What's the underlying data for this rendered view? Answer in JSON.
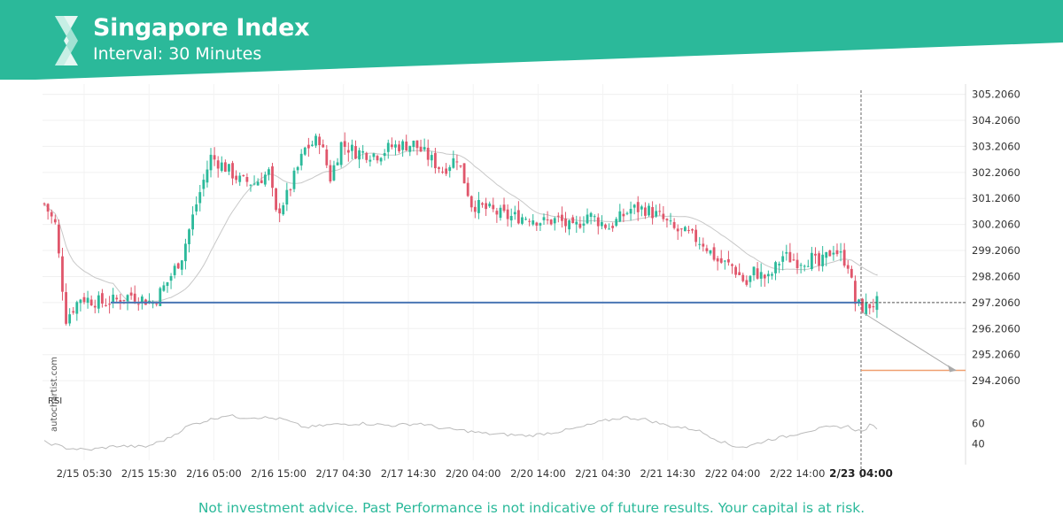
{
  "header": {
    "title": "Singapore Index",
    "interval": "Interval: 30 Minutes"
  },
  "colors": {
    "brand": "#2bb99a",
    "bull": "#2bb99a",
    "bear": "#e0566b",
    "level": "#4a76b4",
    "target": "#f0a070",
    "ma": "#c8c8c8"
  },
  "chart_data": {
    "type": "candlestick",
    "price_axis": {
      "ticks": [
        "305.2060",
        "304.2060",
        "303.2060",
        "302.2060",
        "301.2060",
        "300.2060",
        "299.2060",
        "298.2060",
        "297.2060",
        "296.2060",
        "295.2060",
        "294.2060"
      ],
      "range": [
        293.7,
        305.6
      ]
    },
    "time_labels": [
      "2/15 05:30",
      "2/15 15:30",
      "2/16 05:00",
      "2/16 15:00",
      "2/17 04:30",
      "2/17 14:30",
      "2/20 04:00",
      "2/20 14:00",
      "2/21 04:30",
      "2/21 14:30",
      "2/22 04:00",
      "2/22 14:00"
    ],
    "highlight_time": "2/23 04:00",
    "support_level": 297.206,
    "target_level": 294.6,
    "price_keyframes": [
      [
        0,
        301.0
      ],
      [
        3,
        300.2
      ],
      [
        6,
        296.6
      ],
      [
        10,
        297.4
      ],
      [
        16,
        297.2
      ],
      [
        20,
        297.3
      ],
      [
        24,
        297.5
      ],
      [
        30,
        297.2
      ],
      [
        34,
        298.0
      ],
      [
        38,
        299.0
      ],
      [
        42,
        301.0
      ],
      [
        46,
        302.8
      ],
      [
        50,
        302.4
      ],
      [
        54,
        301.9
      ],
      [
        58,
        301.8
      ],
      [
        62,
        302.2
      ],
      [
        64,
        300.6
      ],
      [
        67,
        301.3
      ],
      [
        72,
        303.1
      ],
      [
        76,
        303.5
      ],
      [
        79,
        302.0
      ],
      [
        82,
        303.3
      ],
      [
        86,
        303.0
      ],
      [
        92,
        302.9
      ],
      [
        96,
        303.2
      ],
      [
        102,
        303.3
      ],
      [
        106,
        302.8
      ],
      [
        110,
        302.3
      ],
      [
        114,
        302.8
      ],
      [
        118,
        301.0
      ],
      [
        122,
        300.8
      ],
      [
        128,
        300.5
      ],
      [
        134,
        300.5
      ],
      [
        138,
        300.3
      ],
      [
        142,
        300.4
      ],
      [
        146,
        300.0
      ],
      [
        150,
        300.6
      ],
      [
        156,
        300.1
      ],
      [
        162,
        300.8
      ],
      [
        166,
        300.8
      ],
      [
        170,
        300.5
      ],
      [
        174,
        300.0
      ],
      [
        178,
        299.8
      ],
      [
        182,
        299.5
      ],
      [
        186,
        298.8
      ],
      [
        190,
        298.6
      ],
      [
        194,
        297.9
      ],
      [
        196,
        298.4
      ],
      [
        200,
        298.1
      ],
      [
        204,
        299.0
      ],
      [
        208,
        298.8
      ],
      [
        212,
        298.9
      ],
      [
        214,
        298.6
      ],
      [
        218,
        299.3
      ],
      [
        222,
        298.7
      ],
      [
        224,
        297.2
      ],
      [
        226,
        297.0
      ],
      [
        228,
        297.1
      ],
      [
        230,
        297.2
      ]
    ],
    "rsi": {
      "label": "RSI",
      "ticks": [
        "60",
        "40"
      ],
      "range": [
        24,
        76
      ],
      "keyframes": [
        [
          0,
          42
        ],
        [
          6,
          36
        ],
        [
          12,
          34
        ],
        [
          20,
          38
        ],
        [
          28,
          37
        ],
        [
          34,
          45
        ],
        [
          40,
          58
        ],
        [
          46,
          64
        ],
        [
          50,
          68
        ],
        [
          54,
          66
        ],
        [
          60,
          66
        ],
        [
          66,
          64
        ],
        [
          72,
          56
        ],
        [
          80,
          59
        ],
        [
          88,
          60
        ],
        [
          96,
          58
        ],
        [
          104,
          60
        ],
        [
          110,
          55
        ],
        [
          116,
          53
        ],
        [
          122,
          50
        ],
        [
          128,
          49
        ],
        [
          134,
          48
        ],
        [
          142,
          52
        ],
        [
          148,
          56
        ],
        [
          154,
          62
        ],
        [
          160,
          66
        ],
        [
          166,
          64
        ],
        [
          172,
          58
        ],
        [
          180,
          54
        ],
        [
          186,
          44
        ],
        [
          190,
          38
        ],
        [
          194,
          37
        ],
        [
          200,
          44
        ],
        [
          206,
          48
        ],
        [
          210,
          52
        ],
        [
          216,
          56
        ],
        [
          222,
          57
        ],
        [
          224,
          54
        ],
        [
          226,
          52
        ],
        [
          228,
          58
        ],
        [
          230,
          56
        ]
      ]
    }
  },
  "disclaimer": "Not investment advice. Past Performance is not indicative of future results. Your capital is at risk.",
  "watermark": "autochartist.com"
}
